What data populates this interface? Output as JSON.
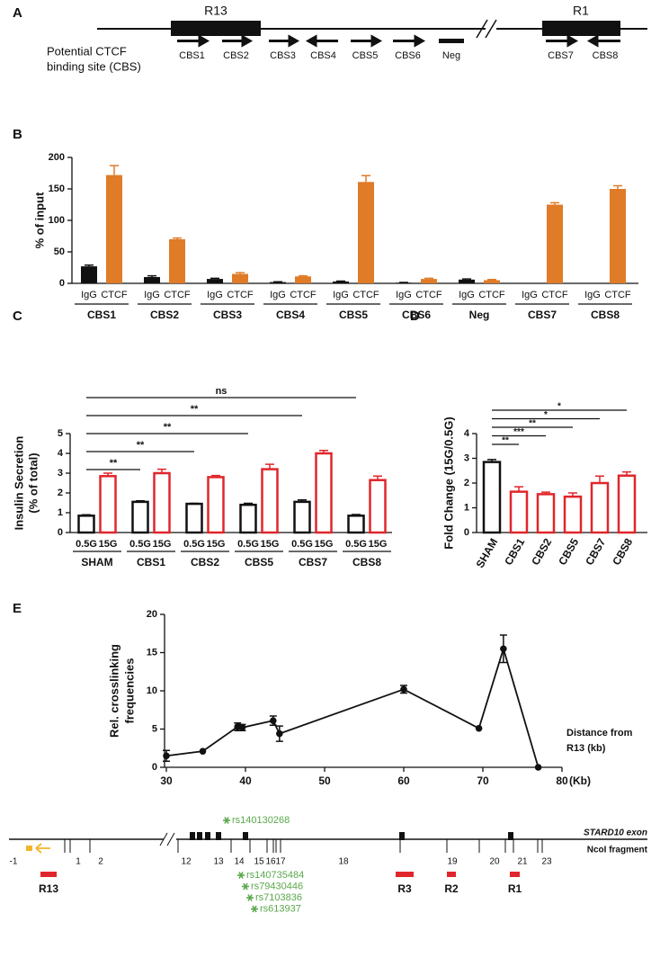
{
  "panel_labels": [
    "A",
    "B",
    "C",
    "D",
    "E"
  ],
  "diagram_a": {
    "regions": [
      "R13",
      "R1"
    ],
    "caption": [
      "Potential CTCF",
      "binding site (CBS)"
    ],
    "sites": [
      "CBS1",
      "CBS2",
      "CBS3",
      "CBS4",
      "CBS5",
      "CBS6",
      "Neg",
      "CBS7",
      "CBS8"
    ]
  },
  "chart_data": [
    {
      "type": "bar",
      "ylabel": "% of input",
      "categories": [
        "CBS1",
        "CBS2",
        "CBS3",
        "CBS4",
        "CBS5",
        "CBS6",
        "Neg",
        "CBS7",
        "CBS8"
      ],
      "series": [
        {
          "name": "IgG",
          "color": "#111111",
          "values": [
            27,
            10,
            7,
            2,
            3,
            1,
            6,
            0,
            0
          ],
          "errors": [
            2,
            2,
            1,
            0.5,
            0.5,
            0.5,
            1,
            0,
            0
          ]
        },
        {
          "name": "CTCF",
          "color": "#e07b28",
          "values": [
            172,
            70,
            15,
            11,
            161,
            7,
            5,
            125,
            150
          ],
          "errors": [
            15,
            2,
            2,
            1,
            10,
            1,
            1,
            3,
            5
          ]
        }
      ],
      "ylim": [
        0,
        200
      ],
      "yticks": [
        0,
        50,
        100,
        150,
        200
      ]
    },
    {
      "type": "bar",
      "ylabel": [
        "Insulin Secretion",
        "(% of total)"
      ],
      "categories": [
        "SHAM",
        "CBS1",
        "CBS2",
        "CBS5",
        "CBS7",
        "CBS8"
      ],
      "series": [
        {
          "name": "0.5G",
          "color": "#111111",
          "values": [
            0.85,
            1.55,
            1.45,
            1.4,
            1.55,
            0.85
          ],
          "errors": [
            0.05,
            0.05,
            0.03,
            0.08,
            0.1,
            0.06
          ]
        },
        {
          "name": "15G",
          "color": "#e0262a",
          "values": [
            2.85,
            3.0,
            2.8,
            3.2,
            4.0,
            2.65
          ],
          "errors": [
            0.15,
            0.2,
            0.08,
            0.25,
            0.15,
            0.2
          ]
        }
      ],
      "ylim": [
        0,
        5
      ],
      "yticks": [
        0,
        1,
        2,
        3,
        4,
        5
      ],
      "annotations": [
        "**",
        "**",
        "**",
        "**",
        "ns"
      ]
    },
    {
      "type": "bar",
      "ylabel": "Fold Change (15G/0.5G)",
      "categories": [
        "SHAM",
        "CBS1",
        "CBS2",
        "CBS5",
        "CBS7",
        "CBS8"
      ],
      "values": [
        2.85,
        1.65,
        1.55,
        1.45,
        2.0,
        2.3
      ],
      "errors": [
        0.1,
        0.2,
        0.08,
        0.15,
        0.28,
        0.15
      ],
      "colors": [
        "#111111",
        "#e0262a",
        "#e0262a",
        "#e0262a",
        "#e0262a",
        "#e0262a"
      ],
      "ylim": [
        0,
        4
      ],
      "yticks": [
        0,
        1,
        2,
        3,
        4
      ],
      "annotations": [
        "**",
        "***",
        "**",
        "*",
        "*"
      ]
    },
    {
      "type": "line",
      "ylabel": [
        "Rel. crosslinking",
        "frequencies"
      ],
      "xlabel": [
        "Distance from",
        "R13 (kb)"
      ],
      "xunit": "(Kb)",
      "x": [
        30,
        34.6,
        39,
        39.6,
        43.5,
        44.3,
        60,
        69.5,
        72.6,
        77
      ],
      "values": [
        1.5,
        2.1,
        5.3,
        5.2,
        6.1,
        4.4,
        10.2,
        5.1,
        15.5,
        0
      ],
      "errors": [
        0.7,
        0,
        0.5,
        0.4,
        0.6,
        1,
        0.5,
        0,
        1.8,
        0
      ],
      "color": "#111111",
      "xlim": [
        30,
        80
      ],
      "xticks": [
        30,
        40,
        50,
        60,
        70,
        80
      ],
      "ylim": [
        0,
        20
      ],
      "yticks": [
        0,
        5,
        10,
        15,
        20
      ]
    }
  ],
  "diagram_e": {
    "snp_top": "rs140130268",
    "snps": [
      "rs140735484",
      "rs79430446",
      "rs7103836",
      "rs613937"
    ],
    "legend": [
      "STARD10 exon",
      "NcoI fragment"
    ],
    "fragments": [
      "-1",
      "1",
      "2",
      "12",
      "13",
      "14",
      "15",
      "16",
      "17",
      "18",
      "19",
      "20",
      "21",
      "23"
    ],
    "regions": [
      "R13",
      "R3",
      "R2",
      "R1"
    ]
  }
}
